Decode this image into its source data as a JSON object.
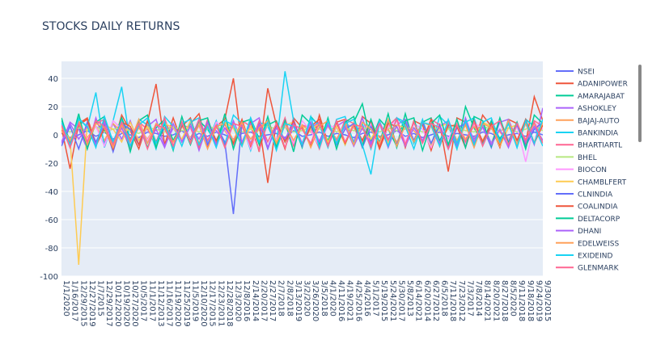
{
  "chart_data": {
    "type": "line",
    "title": "STOCKS DAILY RETURNS",
    "categories": [
      "1/1/2020",
      "1/16/2017",
      "12/29/2015",
      "12/27/2019",
      "1/7/2015",
      "12/29/2017",
      "10/12/2020",
      "10/19/2020",
      "10/27/2020",
      "10/5/2017",
      "11/1/2017",
      "11/12/2013",
      "11/16/2017",
      "11/19/2020",
      "11/25/2019",
      "11/5/2019",
      "12/10/2020",
      "12/17/2015",
      "12/23/2011",
      "12/28/2018",
      "12/3/2020",
      "12/8/2016",
      "2/14/2014",
      "2/20/2017",
      "2/27/2017",
      "2/7/2018",
      "2/8/2018",
      "3/13/2019",
      "3/2/2020",
      "3/26/2020",
      "3/5/2018",
      "4/1/2020",
      "4/11/2016",
      "4/19/2021",
      "4/25/2016",
      "4/4/2016",
      "5/1/2017",
      "5/19/2015",
      "5/24/2021",
      "5/30/2017",
      "5/8/2013",
      "6/14/2021",
      "6/20/2014",
      "6/27/2012",
      "6/5/2018",
      "7/11/2018",
      "7/23/2012",
      "7/3/2017",
      "7/8/2014",
      "8/14/2021",
      "8/20/2021",
      "8/27/2018",
      "8/5/2020",
      "9/11/2018",
      "9/18/2018",
      "9/24/2019",
      "9/30/2015"
    ],
    "ylim": [
      -100,
      52
    ],
    "yticks": [
      -100,
      -80,
      -60,
      -40,
      -20,
      0,
      20,
      40
    ],
    "grid": true,
    "series": [
      {
        "name": "NSEI",
        "color": "#636efa",
        "values": [
          1,
          -2,
          0,
          3,
          -1,
          2,
          -3,
          1,
          0,
          -2,
          2,
          1,
          -1,
          0,
          3,
          -2,
          1,
          -1,
          2,
          0,
          -3,
          1,
          2,
          -1,
          0,
          1,
          -2,
          3,
          -1,
          0,
          2,
          -1,
          1,
          0,
          -2,
          1,
          2,
          -1,
          0,
          3,
          -1,
          1,
          -2,
          0,
          2,
          -1,
          1,
          0,
          -1,
          2,
          1,
          -2,
          0,
          1,
          -1,
          2,
          0
        ]
      },
      {
        "name": "ADANIPOWER",
        "color": "#EF553B",
        "values": [
          5,
          -24,
          8,
          12,
          -6,
          10,
          -8,
          14,
          3,
          -10,
          9,
          36,
          -7,
          12,
          -5,
          8,
          15,
          -9,
          6,
          11,
          40,
          -8,
          10,
          -12,
          33,
          7,
          -10,
          12,
          5,
          -8,
          14,
          -6,
          9,
          11,
          -7,
          13,
          8,
          -10,
          6,
          12,
          -9,
          10,
          7,
          -11,
          8,
          -26,
          12,
          9,
          -7,
          14,
          6,
          -9,
          11,
          8,
          -6,
          27,
          10
        ]
      },
      {
        "name": "AMARAJABAT",
        "color": "#00cc96",
        "values": [
          10,
          -4,
          6,
          -8,
          9,
          3,
          -6,
          12,
          -3,
          7,
          -9,
          5,
          11,
          -4,
          8,
          -7,
          10,
          4,
          -6,
          9,
          5,
          -8,
          12,
          -3,
          7,
          10,
          -5,
          8,
          -9,
          13,
          6,
          -4,
          10,
          -7,
          9,
          22,
          -5,
          11,
          4,
          -8,
          15,
          -6,
          9,
          12,
          -4,
          7,
          -10,
          20,
          5,
          -6,
          10,
          -3,
          8,
          -7,
          11,
          6,
          -4
        ]
      },
      {
        "name": "ASHOKLEY",
        "color": "#ab63fa",
        "values": [
          -6,
          9,
          4,
          -10,
          12,
          -5,
          8,
          -3,
          10,
          -7,
          6,
          11,
          -8,
          5,
          -4,
          9,
          -11,
          7,
          3,
          -6,
          10,
          -5,
          8,
          12,
          -9,
          6,
          -4,
          11,
          -7,
          5,
          9,
          -8,
          6,
          10,
          -5,
          12,
          -6,
          8,
          -9,
          7,
          11,
          -4,
          9,
          -7,
          6,
          10,
          -8,
          12,
          -5,
          7,
          -6,
          9,
          11,
          -4,
          8,
          -7,
          19
        ]
      },
      {
        "name": "BAJAJ-AUTO",
        "color": "#FFA15A",
        "values": [
          3,
          -5,
          7,
          -2,
          6,
          -4,
          8,
          2,
          -6,
          5,
          -3,
          7,
          4,
          -5,
          6,
          -2,
          9,
          -4,
          5,
          3,
          -6,
          7,
          -3,
          5,
          8,
          -4,
          6,
          -5,
          7,
          2,
          -4,
          6,
          -3,
          8,
          5,
          -6,
          7,
          -2,
          4,
          -5,
          6,
          3,
          -4,
          7,
          -6,
          5,
          8,
          -3,
          6,
          -4,
          7,
          2,
          -5,
          6,
          -3,
          4,
          8
        ]
      },
      {
        "name": "BANKINDIA",
        "color": "#19d3f3",
        "values": [
          8,
          -7,
          12,
          5,
          30,
          -9,
          10,
          34,
          -6,
          11,
          7,
          -10,
          13,
          6,
          -8,
          9,
          12,
          -5,
          10,
          -7,
          14,
          8,
          -11,
          9,
          6,
          -7,
          45,
          10,
          -8,
          12,
          7,
          -9,
          11,
          13,
          -6,
          8,
          -10,
          10,
          -7,
          12,
          9,
          -6,
          11,
          -8,
          13,
          7,
          -10,
          9,
          12,
          -7,
          8,
          -5,
          10,
          -9,
          11,
          6,
          -8
        ]
      },
      {
        "name": "BHARTIARTL",
        "color": "#FF6692",
        "values": [
          6,
          -9,
          10,
          -4,
          8,
          11,
          -7,
          5,
          -10,
          9,
          4,
          -6,
          12,
          -8,
          7,
          5,
          -9,
          11,
          -5,
          8,
          -7,
          10,
          6,
          -11,
          9,
          -4,
          12,
          -8,
          7,
          5,
          -10,
          9,
          -6,
          11,
          8,
          -5,
          10,
          -7,
          6,
          12,
          -8,
          9,
          -5,
          11,
          7,
          -9,
          10,
          -6,
          8,
          5,
          -7,
          11,
          -4,
          9,
          -8,
          10,
          6
        ]
      },
      {
        "name": "BHEL",
        "color": "#B6E880",
        "values": [
          4,
          2,
          5,
          3,
          6,
          2,
          4,
          5,
          3,
          1,
          5,
          4,
          2,
          6,
          3,
          5,
          2,
          4,
          6,
          3,
          5,
          2,
          4,
          3,
          6,
          4,
          5,
          2,
          3,
          5,
          4,
          6,
          2,
          5,
          3,
          4,
          6,
          2,
          5,
          3,
          4,
          5,
          2,
          6,
          3,
          4,
          5,
          3,
          2,
          6,
          4,
          3,
          5,
          2,
          4,
          6,
          3
        ]
      },
      {
        "name": "BIOCON",
        "color": "#FF97FF",
        "values": [
          7,
          -5,
          9,
          -3,
          6,
          -8,
          10,
          4,
          -6,
          8,
          -4,
          7,
          5,
          -9,
          11,
          -3,
          6,
          -7,
          9,
          4,
          -5,
          8,
          -10,
          6,
          9,
          -4,
          7,
          -6,
          10,
          3,
          -8,
          7,
          5,
          -6,
          9,
          -4,
          8,
          -7,
          6,
          10,
          -5,
          8,
          4,
          -9,
          7,
          -3,
          10,
          -6,
          8,
          5,
          -7,
          9,
          -4,
          6,
          -19,
          8,
          4
        ]
      },
      {
        "name": "CHAMBLFERT",
        "color": "#FECB52",
        "values": [
          5,
          -3,
          -92,
          8,
          -6,
          7,
          4,
          -5,
          9,
          -4,
          6,
          -7,
          8,
          5,
          -3,
          10,
          -6,
          7,
          -4,
          9,
          5,
          -8,
          6,
          -3,
          8,
          -5,
          7,
          9,
          -6,
          4,
          8,
          -5,
          6,
          -7,
          9,
          4,
          -3,
          8,
          -6,
          7,
          5,
          -4,
          9,
          -7,
          6,
          8,
          -5,
          7,
          -3,
          9,
          6,
          -8,
          5,
          7,
          -4,
          8,
          -6
        ]
      },
      {
        "name": "CLNINDIA",
        "color": "#636efa",
        "values": [
          -8,
          6,
          -10,
          9,
          -5,
          7,
          -12,
          8,
          4,
          -7,
          10,
          -6,
          5,
          -9,
          8,
          -4,
          11,
          -7,
          6,
          -5,
          -56,
          9,
          -6,
          8,
          -10,
          7,
          -4,
          9,
          -8,
          6,
          -5,
          10,
          -7,
          4,
          8,
          -9,
          6,
          -5,
          10,
          -7,
          8,
          -4,
          9,
          -6,
          7,
          -10,
          5,
          8,
          -7,
          6,
          -9,
          10,
          -5,
          7,
          -8,
          4,
          9
        ]
      },
      {
        "name": "COALINDIA",
        "color": "#EF553B",
        "values": [
          9,
          -6,
          7,
          11,
          -8,
          5,
          -10,
          9,
          6,
          -7,
          10,
          -5,
          8,
          -9,
          6,
          12,
          -7,
          9,
          -4,
          8,
          -6,
          11,
          -8,
          7,
          -34,
          9,
          -5,
          10,
          -7,
          6,
          11,
          -8,
          9,
          -6,
          7,
          -4,
          10,
          -9,
          8,
          6,
          -7,
          9,
          -5,
          11,
          -8,
          7,
          6,
          -9,
          10,
          -5,
          8,
          -7,
          9,
          -4,
          11,
          -6,
          7
        ]
      },
      {
        "name": "DELTACORP",
        "color": "#00cc96",
        "values": [
          12,
          -8,
          15,
          -10,
          9,
          13,
          -7,
          11,
          -12,
          10,
          14,
          -9,
          8,
          -11,
          13,
          -6,
          10,
          12,
          -8,
          15,
          -10,
          9,
          11,
          -7,
          13,
          -9,
          10,
          -12,
          14,
          8,
          -7,
          12,
          -10,
          9,
          13,
          -8,
          11,
          -6,
          15,
          -9,
          10,
          12,
          -11,
          8,
          14,
          -7,
          11,
          -9,
          13,
          10,
          -8,
          12,
          -6,
          9,
          -10,
          14,
          8
        ]
      },
      {
        "name": "DHANI",
        "color": "#ab63fa",
        "values": [
          -5,
          8,
          -3,
          6,
          -7,
          9,
          -4,
          5,
          -8,
          7,
          -6,
          4,
          -9,
          8,
          -5,
          6,
          -3,
          9,
          -7,
          5,
          -4,
          8,
          -6,
          7,
          -9,
          5,
          -3,
          8,
          -6,
          9,
          -5,
          7,
          -4,
          6,
          -8,
          5,
          -7,
          9,
          -3,
          6,
          -8,
          5,
          -4,
          7,
          -6,
          9,
          -5,
          8,
          -3,
          6,
          -7,
          4,
          -9,
          8,
          -5,
          6,
          -4
        ]
      },
      {
        "name": "EDELWEISS",
        "color": "#FFA15A",
        "values": [
          6,
          -4,
          10,
          -7,
          8,
          5,
          -9,
          7,
          -5,
          11,
          -6,
          8,
          4,
          -8,
          9,
          -5,
          7,
          -10,
          6,
          8,
          -4,
          9,
          -7,
          5,
          10,
          -6,
          8,
          -4,
          7,
          -9,
          6,
          10,
          -5,
          8,
          -7,
          9,
          4,
          -6,
          11,
          -8,
          7,
          -5,
          9,
          6,
          -8,
          10,
          -4,
          7,
          -9,
          8,
          5,
          -6,
          10,
          -7,
          8,
          -5,
          9
        ]
      },
      {
        "name": "EXIDEIND",
        "color": "#19d3f3",
        "values": [
          9,
          -7,
          11,
          6,
          -9,
          13,
          -5,
          10,
          -8,
          7,
          12,
          -6,
          9,
          -10,
          8,
          11,
          -7,
          6,
          -9,
          10,
          7,
          -8,
          12,
          -5,
          9,
          -11,
          8,
          6,
          -7,
          13,
          -9,
          10,
          -6,
          8,
          11,
          -7,
          -28,
          9,
          -8,
          12,
          6,
          -10,
          9,
          7,
          -8,
          11,
          -6,
          10,
          -7,
          9,
          12,
          -5,
          8,
          -9,
          10,
          -6,
          11
        ]
      },
      {
        "name": "GLENMARK",
        "color": "#FF6692",
        "values": [
          7,
          -9,
          8,
          -5,
          10,
          6,
          -7,
          9,
          -4,
          8,
          -10,
          7,
          5,
          -8,
          9,
          -6,
          11,
          -4,
          7,
          -9,
          8,
          6,
          -7,
          10,
          -5,
          8,
          -9,
          7,
          4,
          -6,
          9,
          -8,
          10,
          -5,
          7,
          6,
          -9,
          8,
          -4,
          11,
          -7,
          9,
          -6,
          8,
          5,
          -10,
          7,
          -5,
          9,
          -8,
          6,
          10,
          -7,
          8,
          -4,
          9,
          -6
        ]
      }
    ]
  }
}
